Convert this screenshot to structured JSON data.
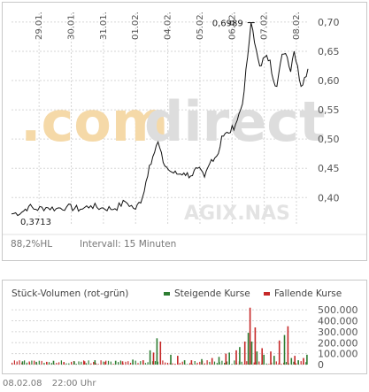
{
  "colors": {
    "line": "#111111",
    "grid": "#d6d6d6",
    "panel_border": "#c8c8c8",
    "rising": "#2e7d32",
    "falling": "#c62828",
    "neutral_volume": "#5a5a5a",
    "watermark_orange": "#f5d9a8",
    "watermark_grey": "#dddddd"
  },
  "watermark": {
    "brand_prefix": ".com",
    "brand_suffix": "direct",
    "ticker": "AGIX.NAS"
  },
  "price_chart": {
    "range_label": "88,2%HL",
    "interval_label": "Intervall: 15 Minuten",
    "min_label": "0,3713",
    "max_label": "0,6989"
  },
  "volume_chart": {
    "title": "Stück-Volumen (rot-grün)",
    "legend_rising": "Steigende Kurse",
    "legend_falling": "Fallende Kurse"
  },
  "footer": {
    "date": "08.02.08",
    "time": "22:00 Uhr"
  },
  "chart_data": [
    {
      "type": "line",
      "ylim": [
        0.355,
        0.715
      ],
      "yticks": [
        0.4,
        0.45,
        0.5,
        0.55,
        0.6,
        0.65,
        0.7
      ],
      "ytick_labels": [
        "0,40",
        "0,45",
        "0,50",
        "0,55",
        "0,60",
        "0,65",
        "0,70"
      ],
      "x_tick_labels": [
        "29.01.",
        "30.01.",
        "31.01.",
        "01.02.",
        "04.02.",
        "05.02.",
        "06.02.",
        "07.02.",
        "08.02."
      ],
      "x": [
        0,
        0.3,
        0.5,
        0.7,
        1.0,
        1.3,
        1.6,
        2.0,
        2.3,
        2.6,
        3.0,
        3.3,
        3.6,
        3.8,
        4.0,
        4.1,
        4.25,
        4.4,
        4.5,
        4.6,
        4.8,
        5.0,
        5.2,
        5.4,
        5.6,
        5.8,
        6.0,
        6.1,
        6.3,
        6.5,
        6.7,
        6.85,
        6.95,
        7.05,
        7.2,
        7.35,
        7.5,
        7.6,
        7.7,
        7.85,
        8.0,
        8.1,
        8.2,
        8.3,
        8.4,
        8.5,
        8.6
      ],
      "y": [
        0.372,
        0.375,
        0.385,
        0.38,
        0.383,
        0.381,
        0.384,
        0.38,
        0.386,
        0.382,
        0.381,
        0.393,
        0.38,
        0.4,
        0.455,
        0.47,
        0.495,
        0.46,
        0.452,
        0.445,
        0.44,
        0.442,
        0.437,
        0.45,
        0.435,
        0.465,
        0.475,
        0.505,
        0.51,
        0.525,
        0.56,
        0.64,
        0.699,
        0.665,
        0.625,
        0.64,
        0.635,
        0.6,
        0.59,
        0.645,
        0.64,
        0.615,
        0.65,
        0.625,
        0.59,
        0.605,
        0.62
      ]
    },
    {
      "type": "bar",
      "ylim": [
        0,
        550000
      ],
      "yticks": [
        0,
        100000,
        200000,
        300000,
        400000,
        500000
      ],
      "ytick_labels": [
        "0",
        "100.000",
        "200.000",
        "300.000",
        "400.000",
        "500.000"
      ],
      "series": [
        {
          "name": "Steigende Kurse",
          "x": [
            0.3,
            0.7,
            1.2,
            1.8,
            2.4,
            3.0,
            3.5,
            4.0,
            4.2,
            4.6,
            5.0,
            5.5,
            6.0,
            6.3,
            6.6,
            6.85,
            6.95,
            7.1,
            7.3,
            7.6,
            7.9,
            8.1,
            8.3,
            8.55
          ],
          "values": [
            30000,
            25000,
            35000,
            30000,
            40000,
            35000,
            45000,
            130000,
            240000,
            90000,
            40000,
            50000,
            70000,
            110000,
            160000,
            290000,
            210000,
            120000,
            90000,
            80000,
            270000,
            60000,
            40000,
            90000
          ]
        },
        {
          "name": "Fallende Kurse",
          "x": [
            0.5,
            1.0,
            1.5,
            2.1,
            2.7,
            3.2,
            3.8,
            4.1,
            4.3,
            4.8,
            5.2,
            5.8,
            6.2,
            6.5,
            6.75,
            6.9,
            7.05,
            7.25,
            7.5,
            7.75,
            8.0,
            8.2,
            8.45
          ],
          "values": [
            20000,
            25000,
            20000,
            30000,
            25000,
            30000,
            40000,
            110000,
            210000,
            80000,
            40000,
            60000,
            100000,
            130000,
            210000,
            520000,
            340000,
            150000,
            120000,
            220000,
            350000,
            80000,
            60000
          ]
        }
      ]
    }
  ]
}
